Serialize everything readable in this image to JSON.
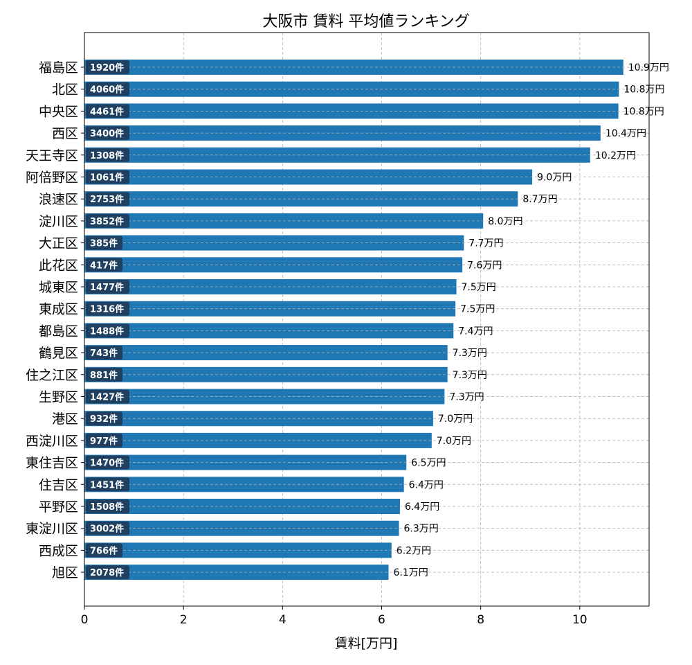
{
  "chart_data": {
    "type": "bar",
    "orientation": "horizontal",
    "title": "大阪市 賃料 平均値ランキング",
    "xlabel": "賃料[万円]",
    "ylabel": "",
    "xlim": [
      0,
      11.4
    ],
    "xticks": [
      0,
      2,
      4,
      6,
      8,
      10
    ],
    "grid": true,
    "bar_color": "#1f77b4",
    "count_badge_color": "#1f3a56",
    "value_suffix": "万円",
    "count_suffix": "件",
    "categories": [
      "福島区",
      "北区",
      "中央区",
      "西区",
      "天王寺区",
      "阿倍野区",
      "浪速区",
      "淀川区",
      "大正区",
      "此花区",
      "城東区",
      "東成区",
      "都島区",
      "鶴見区",
      "住之江区",
      "生野区",
      "港区",
      "西淀川区",
      "東住吉区",
      "住吉区",
      "平野区",
      "東淀川区",
      "西成区",
      "旭区"
    ],
    "values": [
      10.88,
      10.79,
      10.78,
      10.42,
      10.21,
      9.04,
      8.75,
      8.05,
      7.66,
      7.63,
      7.51,
      7.49,
      7.45,
      7.33,
      7.33,
      7.27,
      7.04,
      7.01,
      6.5,
      6.45,
      6.37,
      6.35,
      6.2,
      6.14
    ],
    "value_labels": [
      "10.9万円",
      "10.8万円",
      "10.8万円",
      "10.4万円",
      "10.2万円",
      "9.0万円",
      "8.7万円",
      "8.0万円",
      "7.7万円",
      "7.6万円",
      "7.5万円",
      "7.5万円",
      "7.4万円",
      "7.3万円",
      "7.3万円",
      "7.3万円",
      "7.0万円",
      "7.0万円",
      "6.5万円",
      "6.4万円",
      "6.4万円",
      "6.3万円",
      "6.2万円",
      "6.1万円"
    ],
    "counts": [
      "1920件",
      "4060件",
      "4461件",
      "3400件",
      "1308件",
      "1061件",
      "2753件",
      "3852件",
      "385件",
      "417件",
      "1477件",
      "1316件",
      "1488件",
      "743件",
      "881件",
      "1427件",
      "932件",
      "977件",
      "1470件",
      "1451件",
      "1508件",
      "3002件",
      "766件",
      "2078件"
    ]
  }
}
